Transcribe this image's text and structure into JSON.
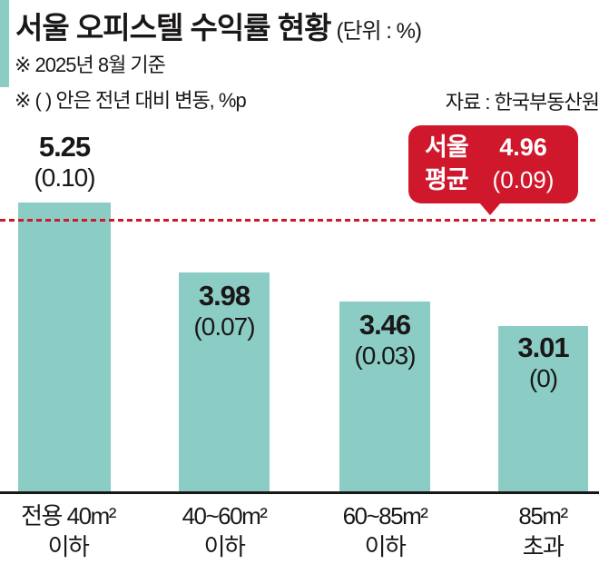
{
  "header": {
    "title": "서울 오피스텔 수익률 현황",
    "unit_note": "(단위 : %)",
    "note_basis": "※ 2025년 8월 기준",
    "note_change": "※ ( ) 안은 전년 대비 변동, %p",
    "source": "자료 : 한국부동산원"
  },
  "average_badge": {
    "label_line1": "서울",
    "label_line2": "평균",
    "value": "4.96",
    "change": "(0.09)"
  },
  "chart_data": {
    "type": "bar",
    "title": "서울 오피스텔 수익률 현황",
    "unit": "%",
    "categories": [
      "전용 40m² 이하",
      "40~60m² 이하",
      "60~85m² 이하",
      "85m² 초과"
    ],
    "category_lines": [
      {
        "line1": "전용 40m²",
        "line2": "이하"
      },
      {
        "line1": "40~60m²",
        "line2": "이하"
      },
      {
        "line1": "60~85m²",
        "line2": "이하"
      },
      {
        "line1": "85m²",
        "line2": "초과"
      }
    ],
    "values": [
      5.25,
      3.98,
      3.46,
      3.01
    ],
    "value_labels": [
      "5.25",
      "3.98",
      "3.46",
      "3.01"
    ],
    "change_labels": [
      "(0.10)",
      "(0.07)",
      "(0.03)",
      "(0)"
    ],
    "reference_line": {
      "label": "서울 평균",
      "value": 4.96,
      "change": "(0.09)"
    },
    "ylim": [
      0,
      5.6
    ],
    "grid": false,
    "legend": "none",
    "bar_color": "#8bcdc5",
    "reference_color": "#d0182d",
    "text_color": "#1a1718"
  }
}
